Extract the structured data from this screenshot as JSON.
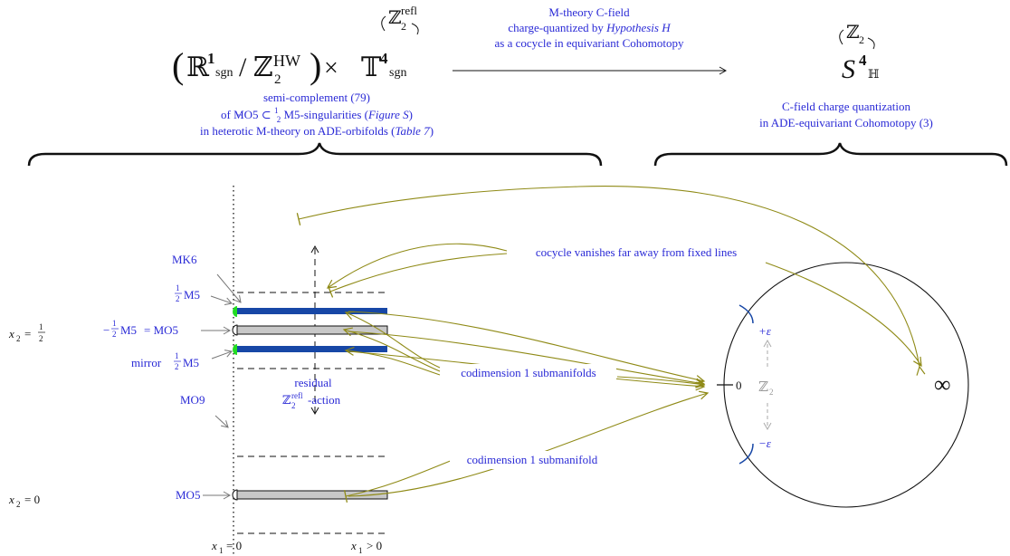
{
  "colors": {
    "label_blue": "#2a2ad6",
    "arrow_olive": "#8f8a16",
    "brane_blue": "#1747a6",
    "brane_gray": "#c8c8c8",
    "mk6_green": "#22dd22",
    "black": "#111111"
  },
  "domain": {
    "lparen": "(",
    "R": "ℝ",
    "R_exp": "1",
    "R_sub": "sgn",
    "slash": "/",
    "Z": "ℤ",
    "Z_sub": "2",
    "Z_sup": "HW",
    "rparen": ")",
    "times": "×",
    "T": "𝕋",
    "T_exp": "4",
    "T_sub": "sgn",
    "action_group": "ℤ",
    "action_sub": "2",
    "action_sup": "refl"
  },
  "codomain": {
    "S": "S",
    "S_exp": "4",
    "S_sub": "ℍ",
    "action_group": "ℤ",
    "action_sub": "2"
  },
  "map_caption": {
    "line1": "M-theory C-field",
    "line2_a": "charge-quantized by ",
    "line2_b": "Hypothesis H",
    "line3": "as a cocycle in equivariant Cohomotopy"
  },
  "left_caption": {
    "line1": "semi-complement (79)",
    "line2_a": "of MO5 ⊂ ",
    "line2_num": "1",
    "line2_den": "2",
    "line2_b": "M5-singularities (",
    "line2_c": "Figure S",
    "line2_d": ")",
    "line3_a": "in heterotic M-theory on ADE-orbifolds (",
    "line3_b": "Table 7",
    "line3_c": ")"
  },
  "right_caption": {
    "line1": "C-field charge quantization",
    "line2": "in ADE-equivariant Cohomotopy (3)"
  },
  "brane_labels": {
    "mk6": "MK6",
    "half": "1",
    "two": "2",
    "m5": "M5",
    "minus": "−",
    "eq_mo5": "= MO5",
    "mirror": "mirror",
    "mo9": "MO9",
    "mo5": "MO5"
  },
  "coords": {
    "x2_half_a": "x",
    "x2_half_sub": "2",
    "x2_half_eq": "=",
    "x2_zero": "= 0",
    "x1": "x",
    "x1_sub": "1",
    "x1_zero": "= 0",
    "x1_pos": "> 0"
  },
  "residual": {
    "line1": "residual",
    "group": "ℤ",
    "sub": "2",
    "sup": "refl",
    "action": "-action"
  },
  "annotations": {
    "vanish": "cocycle vanishes far away from fixed lines",
    "codim1_plural": "codimension 1 submanifolds",
    "codim1_single": "codimension 1 submanifold"
  },
  "sphere_labels": {
    "plus_eps": "+ε",
    "minus_eps": "−ε",
    "zero": "0",
    "infinity": "∞",
    "z": "ℤ",
    "z_sub": "2"
  }
}
